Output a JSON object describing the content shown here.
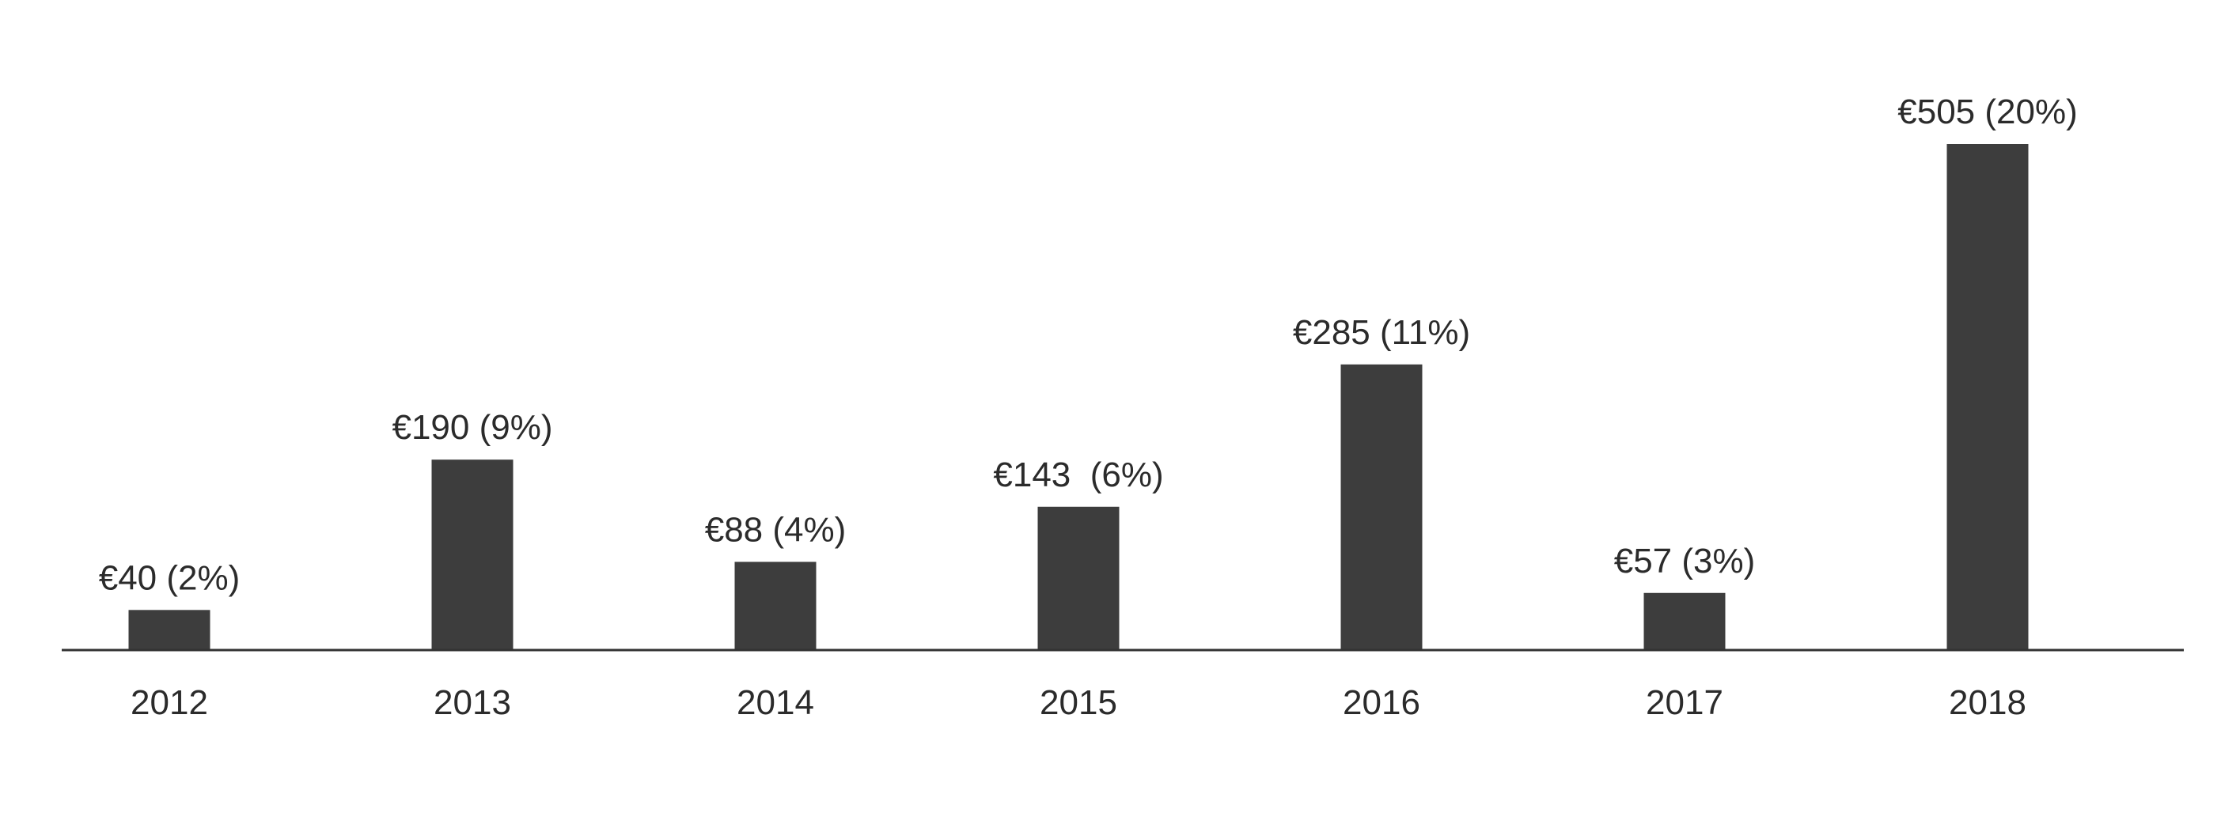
{
  "chart_data": {
    "type": "bar",
    "categories": [
      "2012",
      "2013",
      "2014",
      "2015",
      "2016",
      "2017",
      "2018"
    ],
    "values": [
      40,
      190,
      88,
      143,
      285,
      57,
      505
    ],
    "data_labels": [
      "€40 (2%)",
      "€190 (9%)",
      "€88 (4%)",
      "€143  (6%)",
      "€285 (11%)",
      "€57 (3%)",
      "€505 (20%)"
    ],
    "title": "",
    "xlabel": "",
    "ylabel": "",
    "ylim": [
      0,
      505
    ],
    "grid": false,
    "legend": "none",
    "colors": {
      "bar": "#3d3d3d",
      "axis": "#333333",
      "text": "#2b2b2b"
    }
  }
}
